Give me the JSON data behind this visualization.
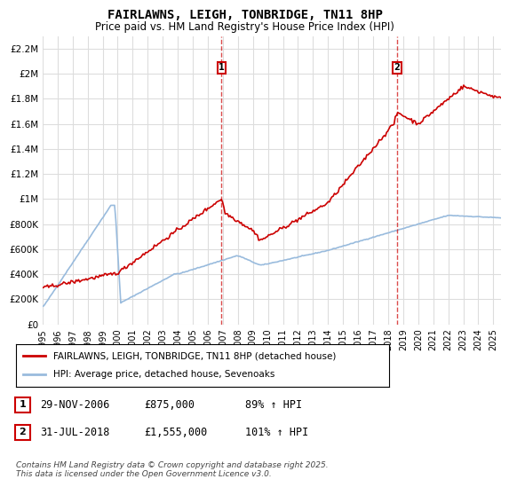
{
  "title": "FAIRLAWNS, LEIGH, TONBRIDGE, TN11 8HP",
  "subtitle": "Price paid vs. HM Land Registry's House Price Index (HPI)",
  "legend_line1": "FAIRLAWNS, LEIGH, TONBRIDGE, TN11 8HP (detached house)",
  "legend_line2": "HPI: Average price, detached house, Sevenoaks",
  "marker1_date": "29-NOV-2006",
  "marker1_price": 875000,
  "marker1_label": "89% ↑ HPI",
  "marker2_date": "31-JUL-2018",
  "marker2_price": 1555000,
  "marker2_label": "101% ↑ HPI",
  "footnote": "Contains HM Land Registry data © Crown copyright and database right 2025.\nThis data is licensed under the Open Government Licence v3.0.",
  "red_color": "#cc0000",
  "blue_color": "#99bbdd",
  "marker1_x": 2006.91,
  "marker2_x": 2018.58,
  "ylim": [
    0,
    2300000
  ],
  "xlim_start": 1995,
  "xlim_end": 2025.5,
  "background_color": "#ffffff",
  "grid_color": "#dddddd"
}
